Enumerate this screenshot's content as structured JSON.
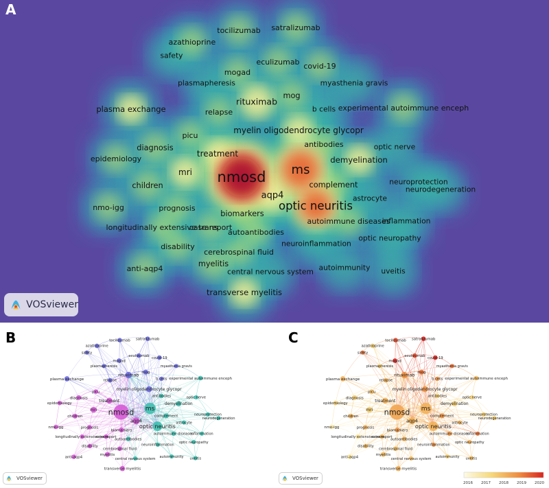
{
  "panels": {
    "a": {
      "label": "A"
    },
    "b": {
      "label": "B"
    },
    "c": {
      "label": "C"
    }
  },
  "brand": {
    "name": "VOSviewer"
  },
  "colors": {
    "density_bg": "#5a48a0",
    "cluster_pink": "#d65bd6",
    "cluster_blue": "#6b6bdc",
    "cluster_teal": "#3fc0b0",
    "overlay_low": "#f6eea8",
    "overlay_high": "#e0302a"
  },
  "keywords": [
    {
      "id": "nmosd",
      "label": "nmosd",
      "weight": 1.0,
      "cluster": "pink",
      "year": 2018.2
    },
    {
      "id": "ms",
      "label": "ms",
      "weight": 0.7,
      "cluster": "teal",
      "year": 2018.0
    },
    {
      "id": "optic-neuritis",
      "label": "optic neuritis",
      "weight": 0.55,
      "cluster": "teal",
      "year": 2018.0
    },
    {
      "id": "aqp4",
      "label": "aqp4",
      "weight": 0.35,
      "cluster": "pink",
      "year": 2018.0
    },
    {
      "id": "tocilizumab",
      "label": "tocilizumab",
      "weight": 0.15,
      "cluster": "blue",
      "year": 2019.5
    },
    {
      "id": "satralizumab",
      "label": "satralizumab",
      "weight": 0.15,
      "cluster": "blue",
      "year": 2020.0
    },
    {
      "id": "azathioprine",
      "label": "azathioprine",
      "weight": 0.15,
      "cluster": "blue",
      "year": 2017.5
    },
    {
      "id": "safety",
      "label": "safety",
      "weight": 0.12,
      "cluster": "blue",
      "year": 2019.0
    },
    {
      "id": "eculizumab",
      "label": "eculizumab",
      "weight": 0.15,
      "cluster": "blue",
      "year": 2019.5
    },
    {
      "id": "covid-19",
      "label": "covid-19",
      "weight": 0.15,
      "cluster": "blue",
      "year": 2020.0
    },
    {
      "id": "mogad",
      "label": "mogad",
      "weight": 0.15,
      "cluster": "blue",
      "year": 2020.0
    },
    {
      "id": "plasmapheresis",
      "label": "plasmapheresis",
      "weight": 0.12,
      "cluster": "blue",
      "year": 2017.5
    },
    {
      "id": "myasthenia-gravis",
      "label": "myasthenia gravis",
      "weight": 0.12,
      "cluster": "blue",
      "year": 2019.0
    },
    {
      "id": "mog",
      "label": "mog",
      "weight": 0.18,
      "cluster": "blue",
      "year": 2019.0
    },
    {
      "id": "rituximab",
      "label": "rituximab",
      "weight": 0.3,
      "cluster": "blue",
      "year": 2018.5
    },
    {
      "id": "plasma-exchange",
      "label": "plasma exchange",
      "weight": 0.2,
      "cluster": "blue",
      "year": 2018.0
    },
    {
      "id": "relapse",
      "label": "relapse",
      "weight": 0.15,
      "cluster": "blue",
      "year": 2018.0
    },
    {
      "id": "b-cells",
      "label": "b cells",
      "weight": 0.12,
      "cluster": "blue",
      "year": 2018.5
    },
    {
      "id": "experimental-autoimmune-enceph",
      "label": "experimental autoimmune enceph",
      "weight": 0.15,
      "cluster": "teal",
      "year": 2017.8
    },
    {
      "id": "myelin-oligodendrocyte-glycopr",
      "label": "myelin oligodendrocyte glycopr",
      "weight": 0.25,
      "cluster": "blue",
      "year": 2018.5
    },
    {
      "id": "picu",
      "label": "picu",
      "weight": 0.15,
      "cluster": "pink",
      "year": 2017.8
    },
    {
      "id": "diagnosis",
      "label": "diagnosis",
      "weight": 0.18,
      "cluster": "pink",
      "year": 2017.5
    },
    {
      "id": "antibodies",
      "label": "antibodies",
      "weight": 0.15,
      "cluster": "teal",
      "year": 2017.5
    },
    {
      "id": "optic-nerve",
      "label": "optic nerve",
      "weight": 0.12,
      "cluster": "teal",
      "year": 2017.5
    },
    {
      "id": "treatment",
      "label": "treatment",
      "weight": 0.25,
      "cluster": "pink",
      "year": 2018.0
    },
    {
      "id": "epidemiology",
      "label": "epidemiology",
      "weight": 0.15,
      "cluster": "pink",
      "year": 2017.5
    },
    {
      "id": "demyelination",
      "label": "demyelination",
      "weight": 0.22,
      "cluster": "teal",
      "year": 2017.5
    },
    {
      "id": "mri",
      "label": "mri",
      "weight": 0.25,
      "cluster": "pink",
      "year": 2017.5
    },
    {
      "id": "children",
      "label": "children",
      "weight": 0.18,
      "cluster": "pink",
      "year": 2018.0
    },
    {
      "id": "complement",
      "label": "complement",
      "weight": 0.18,
      "cluster": "teal",
      "year": 2018.5
    },
    {
      "id": "neuroprotection",
      "label": "neuroprotection",
      "weight": 0.12,
      "cluster": "teal",
      "year": 2017.5
    },
    {
      "id": "neurodegeneration",
      "label": "neurodegeneration",
      "weight": 0.12,
      "cluster": "teal",
      "year": 2017.5
    },
    {
      "id": "astrocyte",
      "label": "astrocyte",
      "weight": 0.12,
      "cluster": "teal",
      "year": 2018.0
    },
    {
      "id": "nmo-igg",
      "label": "nmo-igg",
      "weight": 0.15,
      "cluster": "pink",
      "year": 2016.8
    },
    {
      "id": "prognosis",
      "label": "prognosis",
      "weight": 0.15,
      "cluster": "pink",
      "year": 2018.0
    },
    {
      "id": "biomarkers",
      "label": "biomarkers",
      "weight": 0.18,
      "cluster": "pink",
      "year": 2018.5
    },
    {
      "id": "autoimmune-diseases",
      "label": "autoimmune diseases",
      "weight": 0.15,
      "cluster": "teal",
      "year": 2018.5
    },
    {
      "id": "inflammation",
      "label": "inflammation",
      "weight": 0.12,
      "cluster": "teal",
      "year": 2019.0
    },
    {
      "id": "longitudinally-extensive-trans",
      "label": "longitudinally extensive trans",
      "weight": 0.15,
      "cluster": "pink",
      "year": 2017.0
    },
    {
      "id": "case-report",
      "label": "case report",
      "weight": 0.15,
      "cluster": "pink",
      "year": 2018.0
    },
    {
      "id": "autoantibodies",
      "label": "autoantibodies",
      "weight": 0.15,
      "cluster": "teal",
      "year": 2018.0
    },
    {
      "id": "optic-neuropathy",
      "label": "optic neuropathy",
      "weight": 0.12,
      "cluster": "teal",
      "year": 2018.0
    },
    {
      "id": "disability",
      "label": "disability",
      "weight": 0.15,
      "cluster": "pink",
      "year": 2017.8
    },
    {
      "id": "cerebrospinal-fluid",
      "label": "cerebrospinal fluid",
      "weight": 0.15,
      "cluster": "pink",
      "year": 2017.8
    },
    {
      "id": "neuroinflammation",
      "label": "neuroinflammation",
      "weight": 0.12,
      "cluster": "teal",
      "year": 2018.5
    },
    {
      "id": "myelitis",
      "label": "myelitis",
      "weight": 0.18,
      "cluster": "pink",
      "year": 2017.8
    },
    {
      "id": "anti-aqp4",
      "label": "anti-aqp4",
      "weight": 0.15,
      "cluster": "pink",
      "year": 2017.0
    },
    {
      "id": "autoimmunity",
      "label": "autoimmunity",
      "weight": 0.12,
      "cluster": "teal",
      "year": 2017.5
    },
    {
      "id": "central-nervous-system",
      "label": "central nervous system",
      "weight": 0.12,
      "cluster": "teal",
      "year": 2017.8
    },
    {
      "id": "uveitis",
      "label": "uveitis",
      "weight": 0.12,
      "cluster": "teal",
      "year": 2017.8
    },
    {
      "id": "transverse-myelitis",
      "label": "transverse myelitis",
      "weight": 0.2,
      "cluster": "pink",
      "year": 2018.0
    }
  ],
  "overlay_legend": {
    "ticks": [
      "2016",
      "2017",
      "2018",
      "2019",
      "2020"
    ]
  }
}
